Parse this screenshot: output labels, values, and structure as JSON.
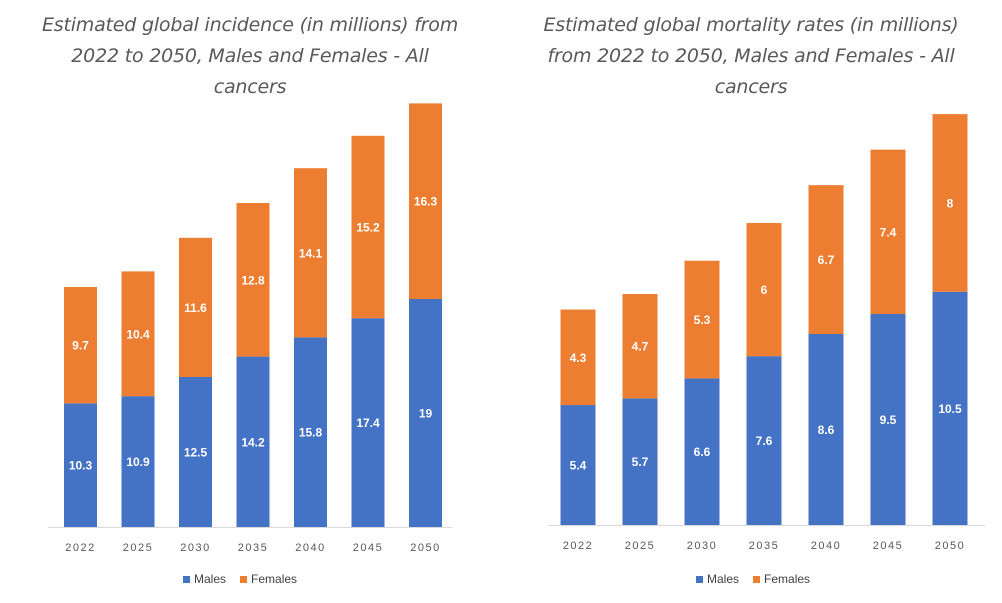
{
  "colors": {
    "males": "#4472C4",
    "females": "#ED7D31",
    "axis_text": "#595959",
    "data_label": "#ffffff"
  },
  "legend": {
    "males_label": "Males",
    "females_label": "Females"
  },
  "chart_data": [
    {
      "type": "bar",
      "stacked": true,
      "title": "Estimated global incidence (in millions) from 2022 to 2050, Males and Females - All cancers",
      "title_lines": [
        "Estimated global incidence (in millions) from",
        "2022 to 2050, Males and Females - All",
        "cancers"
      ],
      "categories": [
        "2022",
        "2025",
        "2030",
        "2035",
        "2040",
        "2045",
        "2050"
      ],
      "series": [
        {
          "name": "Males",
          "values": [
            10.3,
            10.9,
            12.5,
            14.2,
            15.8,
            17.4,
            19
          ]
        },
        {
          "name": "Females",
          "values": [
            9.7,
            10.4,
            11.6,
            12.8,
            14.1,
            15.2,
            16.3
          ]
        }
      ],
      "xlabel": "",
      "ylabel": "",
      "ylim": [
        0,
        36
      ],
      "grid": false,
      "legend_position": "bottom"
    },
    {
      "type": "bar",
      "stacked": true,
      "title": "Estimated global mortality rates (in millions) from 2022 to 2050, Males and Females - All cancers",
      "title_lines": [
        "Estimated global mortality rates (in millions)",
        "from 2022 to 2050, Males and Females - All",
        "cancers"
      ],
      "categories": [
        "2022",
        "2025",
        "2030",
        "2035",
        "2040",
        "2045",
        "2050"
      ],
      "series": [
        {
          "name": "Males",
          "values": [
            5.4,
            5.7,
            6.6,
            7.6,
            8.6,
            9.5,
            10.5
          ]
        },
        {
          "name": "Females",
          "values": [
            4.3,
            4.7,
            5.3,
            6,
            6.7,
            7.4,
            8
          ]
        }
      ],
      "xlabel": "",
      "ylabel": "",
      "ylim": [
        0,
        19
      ],
      "grid": false,
      "legend_position": "bottom"
    }
  ]
}
